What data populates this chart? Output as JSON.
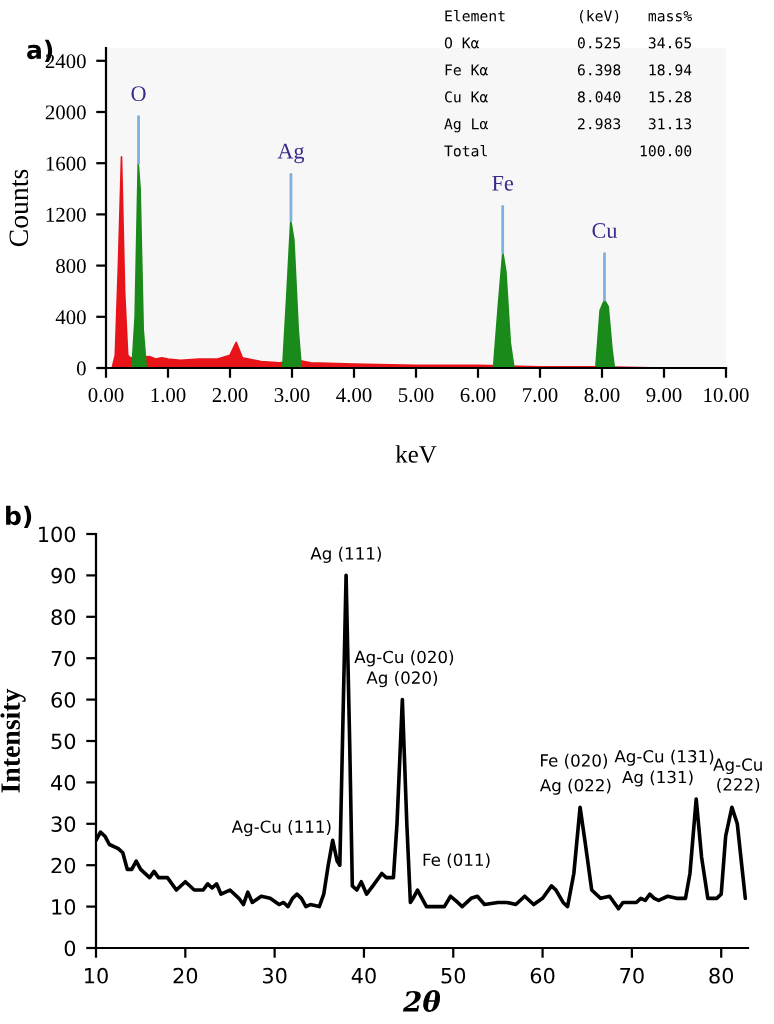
{
  "chart_data": [
    {
      "type": "area",
      "xlabel": "keV",
      "ylabel": "Counts",
      "xlim": [
        0,
        10
      ],
      "ylim": [
        0,
        2500
      ],
      "xticks": [
        {
          "value": 0,
          "label": "0.00"
        },
        {
          "value": 1,
          "label": "1.00"
        },
        {
          "value": 2,
          "label": "2.00"
        },
        {
          "value": 3,
          "label": "3.00"
        },
        {
          "value": 4,
          "label": "4.00"
        },
        {
          "value": 5,
          "label": "5.00"
        },
        {
          "value": 6,
          "label": "6.00"
        },
        {
          "value": 7,
          "label": "7.00"
        },
        {
          "value": 8,
          "label": "8.00"
        },
        {
          "value": 9,
          "label": "9.00"
        },
        {
          "value": 10,
          "label": "10.00"
        }
      ],
      "yticks": [
        0,
        400,
        800,
        1200,
        1600,
        2000,
        2400
      ],
      "grid": false,
      "legend": false,
      "series": [
        {
          "color": "#e8141a",
          "x": [
            0,
            0.1,
            0.15,
            0.2,
            0.25,
            0.3,
            0.35,
            0.39,
            0.7,
            0.8,
            0.9,
            1.0,
            1.2,
            1.5,
            1.8,
            2.0,
            2.1,
            2.2,
            2.5,
            2.8,
            3.1,
            3.3,
            4.0,
            5.0,
            6.0,
            7.0,
            8.0,
            9.0,
            10.0
          ],
          "values": [
            0,
            0,
            100,
            800,
            1650,
            600,
            100,
            80,
            90,
            70,
            80,
            70,
            60,
            70,
            70,
            100,
            200,
            80,
            50,
            40,
            60,
            40,
            30,
            20,
            20,
            10,
            10,
            0,
            0
          ]
        },
        {
          "color": "#1a8a1a",
          "x": [
            0.42,
            0.47,
            0.52,
            0.55,
            0.6,
            0.65,
            2.85,
            2.92,
            2.98,
            3.03,
            3.1,
            3.15,
            6.25,
            6.33,
            6.4,
            6.45,
            6.52,
            6.58,
            7.9,
            7.97,
            8.04,
            8.1,
            8.16,
            8.2
          ],
          "values": [
            0,
            400,
            1600,
            1400,
            300,
            0,
            0,
            600,
            1150,
            1000,
            300,
            0,
            0,
            500,
            900,
            750,
            200,
            0,
            0,
            450,
            530,
            480,
            150,
            0
          ]
        }
      ],
      "annotations": [
        "a)",
        "Element        (keV)   mass%",
        "O Kα           0.525   34.65",
        "Fe Kα          6.398   18.94",
        "Cu Kα          8.040   15.28",
        "Ag Lα          2.983   31.13",
        "Total                 100.00",
        {
          "text": "O",
          "x": 0.525,
          "y": 1600
        },
        {
          "text": "Ag",
          "x": 2.983,
          "y": 1150
        },
        {
          "text": "Fe",
          "x": 6.398,
          "y": 900
        },
        {
          "text": "Cu",
          "x": 8.04,
          "y": 530
        }
      ]
    },
    {
      "type": "line",
      "xlabel": "2θ",
      "ylabel": "Intensity",
      "xlim": [
        10,
        83
      ],
      "ylim": [
        0,
        100
      ],
      "xticks": [
        10,
        20,
        30,
        40,
        50,
        60,
        70,
        80
      ],
      "yticks": [
        0,
        10,
        20,
        30,
        40,
        50,
        60,
        70,
        80,
        90,
        100
      ],
      "grid": false,
      "legend": false,
      "marker": "none",
      "line_style": "solid",
      "series": [
        {
          "color": "#000000",
          "x": [
            10,
            10.5,
            11,
            11.5,
            12.5,
            13,
            13.5,
            14,
            14.5,
            15,
            16,
            16.5,
            17,
            18,
            19,
            20,
            21,
            22,
            22.5,
            23,
            23.5,
            24,
            25,
            26,
            26.5,
            27,
            27.5,
            28.5,
            29.5,
            30.5,
            31,
            31.5,
            32,
            32.5,
            33,
            33.5,
            34,
            35,
            35.5,
            36,
            36.5,
            37,
            37.3,
            37.6,
            38,
            38.4,
            38.7,
            39.2,
            39.7,
            40.3,
            41,
            42,
            42.5,
            43.3,
            43.7,
            44.3,
            44.8,
            45.2,
            45.5,
            46,
            46.5,
            47,
            48,
            49,
            49.7,
            50.5,
            51,
            52,
            52.7,
            53.5,
            55,
            56,
            57,
            58,
            59,
            60,
            61,
            61.5,
            62.3,
            62.8,
            63.5,
            64.2,
            64.8,
            65.5,
            66.5,
            67.5,
            68,
            68.5,
            69,
            70,
            70.5,
            71,
            71.5,
            72,
            72.5,
            73,
            74,
            75,
            76,
            76.5,
            77.2,
            77.8,
            78.5,
            79.5,
            80,
            80.5,
            81.2,
            81.8,
            82.3,
            82.7
          ],
          "values": [
            26,
            28,
            27,
            25,
            24,
            23,
            19,
            19,
            21,
            19,
            17,
            18.5,
            17,
            17,
            14,
            16,
            14,
            14,
            15.5,
            14.5,
            15.5,
            13,
            14,
            12,
            10.5,
            13.5,
            11,
            12.5,
            12,
            10.5,
            11,
            10,
            12,
            13,
            12,
            10,
            10.5,
            10,
            13,
            20,
            26,
            21,
            20,
            50,
            90,
            50,
            15,
            14,
            16,
            13,
            15,
            18,
            17,
            17,
            30,
            60,
            30,
            11,
            12,
            14,
            12,
            10,
            10,
            10,
            12.5,
            11,
            10,
            12,
            12.5,
            10.5,
            11,
            11,
            10.5,
            12.5,
            10.5,
            12,
            15,
            14,
            11,
            10,
            18,
            34,
            25,
            14,
            12,
            12.5,
            11,
            9.5,
            11,
            11,
            11,
            12,
            11.5,
            13,
            12,
            11.5,
            12.5,
            12,
            12,
            18,
            36,
            22,
            12,
            12,
            13,
            27,
            34,
            30,
            20,
            12
          ]
        }
      ],
      "annotations": [
        "b)",
        "Ag (111)",
        "Ag-Cu (020)",
        "Ag (020)",
        "Ag-Cu (111)",
        "Fe (011)",
        "Fe (020)",
        "Ag (022)",
        "Ag-Cu (131)",
        "Ag (131)",
        "Ag-Cu",
        "(222)"
      ]
    }
  ]
}
